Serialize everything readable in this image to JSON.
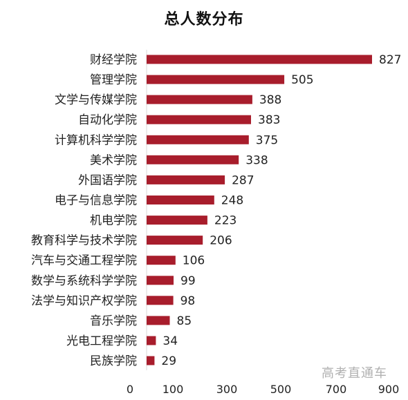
{
  "chart_data": {
    "type": "bar",
    "orientation": "horizontal",
    "title": "总人数分布",
    "categories": [
      "财经学院",
      "管理学院",
      "文学与传媒学院",
      "自动化学院",
      "计算机科学学院",
      "美术学院",
      "外国语学院",
      "电子与信息学院",
      "机电学院",
      "教育科学与技术学院",
      "汽车与交通工程学院",
      "数学与系统科学学院",
      "法学与知识产权学院",
      "音乐学院",
      "光电工程学院",
      "民族学院"
    ],
    "values": [
      827,
      505,
      388,
      383,
      375,
      338,
      287,
      248,
      223,
      206,
      106,
      99,
      98,
      85,
      34,
      29
    ],
    "xticks": [
      "0",
      "100",
      "300",
      "500",
      "700",
      "900"
    ],
    "xlim": [
      0,
      900
    ],
    "grid": false,
    "legend": "none",
    "bar_color": "#a81d2c"
  },
  "watermark": "高考直通车"
}
